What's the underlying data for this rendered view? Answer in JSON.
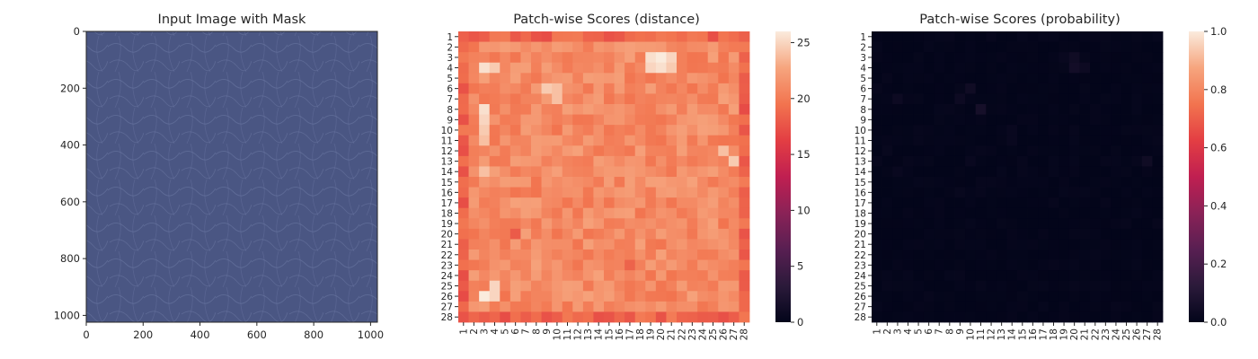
{
  "chart_data": [
    {
      "type": "image",
      "title": "Input Image with Mask",
      "xlim": [
        0,
        1024
      ],
      "ylim": [
        1024,
        0
      ],
      "x_ticks": [
        0,
        200,
        400,
        600,
        800,
        1000
      ],
      "y_ticks": [
        0,
        200,
        400,
        600,
        800,
        1000
      ],
      "image_color": "#4a5683"
    },
    {
      "type": "heatmap",
      "title": "Patch-wise Scores (distance)",
      "grid_size": 28,
      "x_labels": [
        "1",
        "2",
        "3",
        "4",
        "5",
        "6",
        "7",
        "8",
        "9",
        "10",
        "11",
        "12",
        "13",
        "14",
        "15",
        "16",
        "17",
        "18",
        "19",
        "20",
        "21",
        "22",
        "23",
        "24",
        "25",
        "26",
        "27",
        "28"
      ],
      "y_labels": [
        "1",
        "2",
        "3",
        "4",
        "5",
        "6",
        "7",
        "8",
        "9",
        "10",
        "11",
        "12",
        "13",
        "14",
        "15",
        "16",
        "17",
        "18",
        "19",
        "20",
        "21",
        "22",
        "23",
        "24",
        "25",
        "26",
        "27",
        "28"
      ],
      "colorbar": {
        "min": 0,
        "max": 26,
        "ticks": [
          0,
          5,
          10,
          15,
          20,
          25
        ]
      },
      "colormap": "rocket",
      "baseline": 21,
      "edge_value": 18.5,
      "hotspots": [
        {
          "row": 4,
          "col": 3,
          "value": 25.5
        },
        {
          "row": 4,
          "col": 4,
          "value": 24.5
        },
        {
          "row": 3,
          "col": 19,
          "value": 25.5
        },
        {
          "row": 3,
          "col": 20,
          "value": 26
        },
        {
          "row": 3,
          "col": 21,
          "value": 25
        },
        {
          "row": 4,
          "col": 19,
          "value": 25
        },
        {
          "row": 4,
          "col": 20,
          "value": 25.5
        },
        {
          "row": 4,
          "col": 21,
          "value": 24.5
        },
        {
          "row": 6,
          "col": 9,
          "value": 24.5
        },
        {
          "row": 6,
          "col": 10,
          "value": 24
        },
        {
          "row": 7,
          "col": 10,
          "value": 24
        },
        {
          "row": 8,
          "col": 3,
          "value": 25.5
        },
        {
          "row": 9,
          "col": 3,
          "value": 25
        },
        {
          "row": 10,
          "col": 3,
          "value": 24.5
        },
        {
          "row": 11,
          "col": 3,
          "value": 24
        },
        {
          "row": 12,
          "col": 26,
          "value": 24
        },
        {
          "row": 13,
          "col": 27,
          "value": 24.5
        },
        {
          "row": 14,
          "col": 3,
          "value": 24
        },
        {
          "row": 25,
          "col": 4,
          "value": 25
        },
        {
          "row": 26,
          "col": 3,
          "value": 26
        },
        {
          "row": 26,
          "col": 4,
          "value": 25
        },
        {
          "row": 20,
          "col": 6,
          "value": 18
        },
        {
          "row": 20,
          "col": 28,
          "value": 17.5
        },
        {
          "row": 28,
          "col": 1,
          "value": 17.5
        },
        {
          "row": 23,
          "col": 17,
          "value": 18.5
        }
      ]
    },
    {
      "type": "heatmap",
      "title": "Patch-wise Scores (probability)",
      "grid_size": 28,
      "x_labels": [
        "1",
        "2",
        "3",
        "4",
        "5",
        "6",
        "7",
        "8",
        "9",
        "10",
        "11",
        "12",
        "13",
        "14",
        "15",
        "16",
        "17",
        "18",
        "19",
        "20",
        "21",
        "22",
        "23",
        "24",
        "25",
        "26",
        "27",
        "28"
      ],
      "y_labels": [
        "1",
        "2",
        "3",
        "4",
        "5",
        "6",
        "7",
        "8",
        "9",
        "10",
        "11",
        "12",
        "13",
        "14",
        "15",
        "16",
        "17",
        "18",
        "19",
        "20",
        "21",
        "22",
        "23",
        "24",
        "25",
        "26",
        "27",
        "28"
      ],
      "colorbar": {
        "min": 0,
        "max": 1,
        "ticks": [
          "0.0",
          "0.2",
          "0.4",
          "0.6",
          "0.8",
          "1.0"
        ]
      },
      "colormap": "rocket",
      "baseline": 0.0,
      "hotspots": [
        {
          "row": 4,
          "col": 20,
          "value": 0.05
        },
        {
          "row": 3,
          "col": 20,
          "value": 0.04
        },
        {
          "row": 4,
          "col": 21,
          "value": 0.03
        },
        {
          "row": 3,
          "col": 19,
          "value": 0.02
        },
        {
          "row": 6,
          "col": 10,
          "value": 0.04
        },
        {
          "row": 7,
          "col": 9,
          "value": 0.03
        },
        {
          "row": 8,
          "col": 11,
          "value": 0.06
        },
        {
          "row": 7,
          "col": 3,
          "value": 0.03
        },
        {
          "row": 10,
          "col": 14,
          "value": 0.02
        },
        {
          "row": 11,
          "col": 14,
          "value": 0.02
        },
        {
          "row": 13,
          "col": 27,
          "value": 0.04
        },
        {
          "row": 14,
          "col": 3,
          "value": 0.02
        },
        {
          "row": 13,
          "col": 10,
          "value": 0.02
        },
        {
          "row": 16,
          "col": 9,
          "value": 0.015
        },
        {
          "row": 12,
          "col": 2,
          "value": 0.015
        }
      ]
    }
  ]
}
